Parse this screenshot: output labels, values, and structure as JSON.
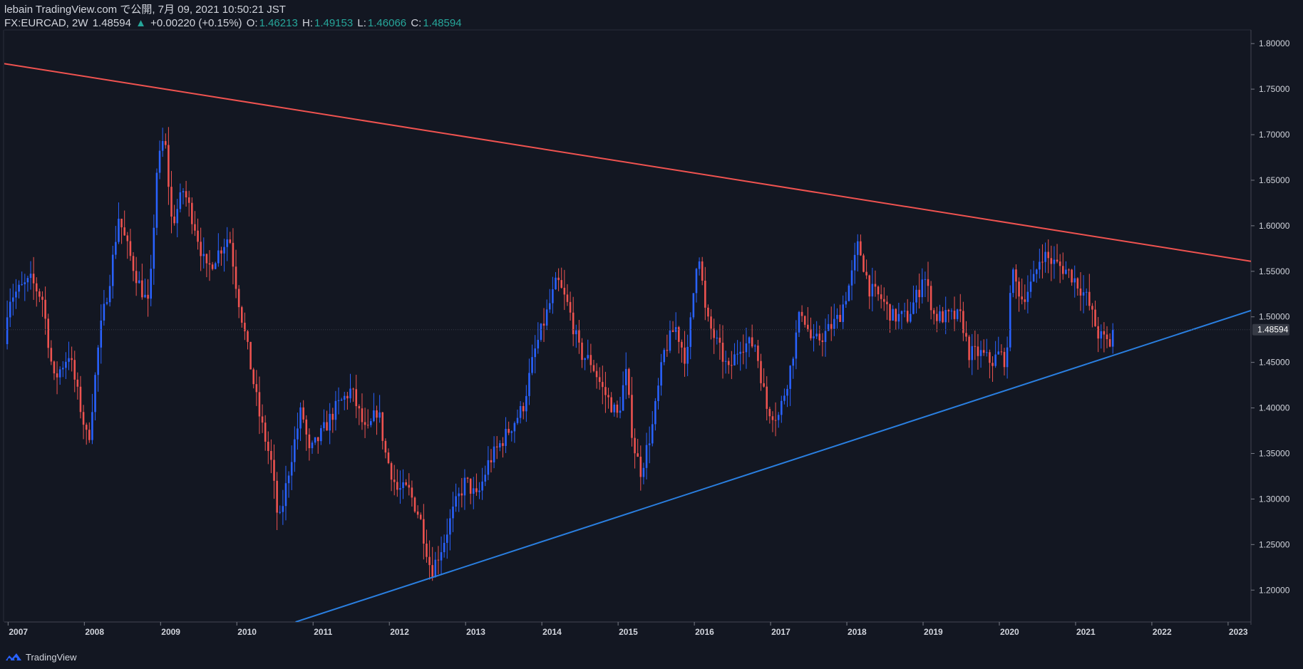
{
  "header": {
    "publisher": "lebain TradingView.com で公開, 7月 09, 2021 10:50:21 JST",
    "symbol": "FX:EURCAD, 2W",
    "last": "1.48594",
    "change_arrow": "▲",
    "change": "+0.00220 (+0.15%)",
    "o_label": "O:",
    "o_value": "1.46213",
    "h_label": "H:",
    "h_value": "1.49153",
    "l_label": "L:",
    "l_value": "1.46066",
    "c_label": "C:",
    "c_value": "1.48594"
  },
  "footer": {
    "brand": "TradingView",
    "logo_icon": "tradingview-logo-icon"
  },
  "colors": {
    "background": "#131722",
    "up": "#2962ff",
    "down": "#ef5350",
    "resistance": "#f05350",
    "support": "#2a7fe0",
    "axis_text": "#d1d4dc",
    "badge": "#363a45"
  },
  "chart_data": {
    "type": "candlestick",
    "symbol": "FX:EURCAD",
    "interval": "2W",
    "x_ticks": [
      "2007",
      "2008",
      "2009",
      "2010",
      "2011",
      "2012",
      "2013",
      "2014",
      "2015",
      "2016",
      "2017",
      "2018",
      "2019",
      "2020",
      "2021",
      "2022",
      "2023"
    ],
    "y_ticks": [
      "1.80000",
      "1.75000",
      "1.70000",
      "1.65000",
      "1.60000",
      "1.55000",
      "1.50000",
      "1.45000",
      "1.40000",
      "1.35000",
      "1.30000",
      "1.25000",
      "1.20000"
    ],
    "ylim": [
      1.165,
      1.815
    ],
    "xlim": [
      2006.95,
      2023.3
    ],
    "last_price": 1.48594,
    "last_price_label": "1.48594",
    "path_points": [
      [
        2006.95,
        1.47
      ],
      [
        2007.0,
        1.52
      ],
      [
        2007.3,
        1.54
      ],
      [
        2007.45,
        1.52
      ],
      [
        2007.6,
        1.43
      ],
      [
        2007.8,
        1.46
      ],
      [
        2007.95,
        1.4
      ],
      [
        2008.05,
        1.36
      ],
      [
        2008.2,
        1.48
      ],
      [
        2008.35,
        1.55
      ],
      [
        2008.45,
        1.61
      ],
      [
        2008.55,
        1.58
      ],
      [
        2008.7,
        1.54
      ],
      [
        2008.85,
        1.51
      ],
      [
        2008.95,
        1.66
      ],
      [
        2009.05,
        1.7
      ],
      [
        2009.15,
        1.6
      ],
      [
        2009.3,
        1.64
      ],
      [
        2009.45,
        1.6
      ],
      [
        2009.6,
        1.55
      ],
      [
        2009.75,
        1.57
      ],
      [
        2009.9,
        1.59
      ],
      [
        2010.0,
        1.53
      ],
      [
        2010.15,
        1.46
      ],
      [
        2010.3,
        1.39
      ],
      [
        2010.45,
        1.34
      ],
      [
        2010.55,
        1.27
      ],
      [
        2010.7,
        1.34
      ],
      [
        2010.85,
        1.4
      ],
      [
        2010.95,
        1.35
      ],
      [
        2011.1,
        1.37
      ],
      [
        2011.3,
        1.4
      ],
      [
        2011.5,
        1.42
      ],
      [
        2011.7,
        1.37
      ],
      [
        2011.85,
        1.4
      ],
      [
        2011.95,
        1.35
      ],
      [
        2012.1,
        1.31
      ],
      [
        2012.25,
        1.31
      ],
      [
        2012.4,
        1.28
      ],
      [
        2012.55,
        1.22
      ],
      [
        2012.7,
        1.25
      ],
      [
        2012.85,
        1.29
      ],
      [
        2013.0,
        1.32
      ],
      [
        2013.15,
        1.3
      ],
      [
        2013.3,
        1.34
      ],
      [
        2013.45,
        1.36
      ],
      [
        2013.6,
        1.38
      ],
      [
        2013.75,
        1.4
      ],
      [
        2013.9,
        1.46
      ],
      [
        2014.05,
        1.5
      ],
      [
        2014.2,
        1.54
      ],
      [
        2014.35,
        1.51
      ],
      [
        2014.5,
        1.46
      ],
      [
        2014.65,
        1.45
      ],
      [
        2014.8,
        1.42
      ],
      [
        2015.0,
        1.39
      ],
      [
        2015.1,
        1.44
      ],
      [
        2015.2,
        1.36
      ],
      [
        2015.3,
        1.33
      ],
      [
        2015.45,
        1.38
      ],
      [
        2015.6,
        1.46
      ],
      [
        2015.75,
        1.49
      ],
      [
        2015.9,
        1.45
      ],
      [
        2016.05,
        1.58
      ],
      [
        2016.15,
        1.5
      ],
      [
        2016.3,
        1.47
      ],
      [
        2016.45,
        1.44
      ],
      [
        2016.6,
        1.47
      ],
      [
        2016.8,
        1.47
      ],
      [
        2016.95,
        1.4
      ],
      [
        2017.1,
        1.39
      ],
      [
        2017.25,
        1.44
      ],
      [
        2017.4,
        1.51
      ],
      [
        2017.55,
        1.47
      ],
      [
        2017.7,
        1.48
      ],
      [
        2017.9,
        1.5
      ],
      [
        2018.05,
        1.54
      ],
      [
        2018.15,
        1.58
      ],
      [
        2018.3,
        1.53
      ],
      [
        2018.45,
        1.52
      ],
      [
        2018.6,
        1.5
      ],
      [
        2018.8,
        1.5
      ],
      [
        2018.95,
        1.53
      ],
      [
        2019.0,
        1.55
      ],
      [
        2019.15,
        1.5
      ],
      [
        2019.3,
        1.5
      ],
      [
        2019.5,
        1.5
      ],
      [
        2019.6,
        1.46
      ],
      [
        2019.75,
        1.46
      ],
      [
        2019.9,
        1.45
      ],
      [
        2020.0,
        1.46
      ],
      [
        2020.1,
        1.45
      ],
      [
        2020.15,
        1.55
      ],
      [
        2020.3,
        1.52
      ],
      [
        2020.45,
        1.54
      ],
      [
        2020.55,
        1.57
      ],
      [
        2020.7,
        1.56
      ],
      [
        2020.9,
        1.55
      ],
      [
        2021.0,
        1.54
      ],
      [
        2021.15,
        1.52
      ],
      [
        2021.3,
        1.48
      ],
      [
        2021.45,
        1.47
      ],
      [
        2021.52,
        1.486
      ]
    ],
    "trendlines": [
      {
        "name": "resistance",
        "from": [
          2006.95,
          1.778
        ],
        "to": [
          2023.3,
          1.561
        ]
      },
      {
        "name": "support",
        "from": [
          2010.77,
          1.165
        ],
        "to": [
          2023.3,
          1.507
        ]
      }
    ]
  }
}
